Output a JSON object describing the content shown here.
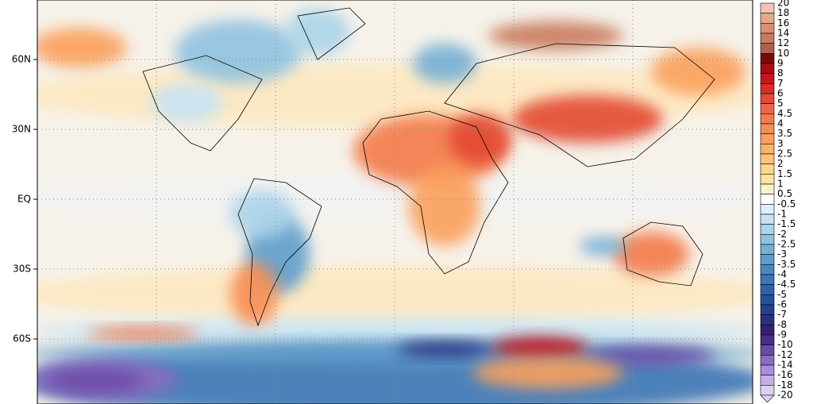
{
  "map": {
    "lat_labels": [
      "60N",
      "30N",
      "EQ",
      "30S",
      "60S"
    ],
    "colorbar": {
      "levels": [
        20,
        18,
        16,
        14,
        12,
        10,
        9,
        8,
        7,
        6,
        5,
        4.5,
        4,
        3.5,
        3,
        2.5,
        2,
        1.5,
        1,
        0.5,
        -0.5,
        -1,
        -1.5,
        -2,
        -2.5,
        -3,
        -3.5,
        -4,
        -4.5,
        -5,
        -6,
        -7,
        -8,
        -9,
        -10,
        -12,
        -14,
        -16,
        -18,
        -20
      ],
      "colors": [
        "#f2c4b0",
        "#e6a88c",
        "#d99070",
        "#c87a5c",
        "#b0604a",
        "#7a0a0a",
        "#a50f15",
        "#c4161c",
        "#d7301f",
        "#e34a33",
        "#ef6548",
        "#f47a4a",
        "#f88d52",
        "#fba05b",
        "#fdb366",
        "#fdc574",
        "#fed687",
        "#fee49f",
        "#fff1c6",
        "#ffffff",
        "#e0f0fa",
        "#c6e3f3",
        "#abd3ea",
        "#8fc2e0",
        "#74b0d5",
        "#5e9dcb",
        "#4a89c0",
        "#3b75b4",
        "#3162a8",
        "#2a4f9a",
        "#25408c",
        "#2a2f80",
        "#352074",
        "#4b2c8a",
        "#6a4aa6",
        "#8a6cc0",
        "#a98dd6",
        "#c4b0e6",
        "#dcd0f2"
      ]
    }
  }
}
